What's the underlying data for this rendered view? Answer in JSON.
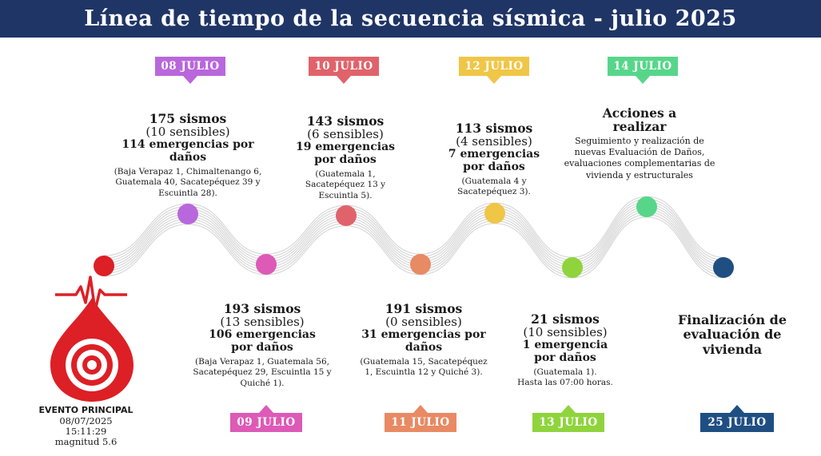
{
  "title": "Línea de tiempo de la secuencia sísmica - julio 2025",
  "colors": {
    "header": "#1f3566",
    "red": "#dd1f26",
    "purple": "#b967dc",
    "pink": "#dd5ab7",
    "rose": "#e0636b",
    "salmon": "#e88a63",
    "yellow": "#f0c647",
    "lime": "#8fd43d",
    "green": "#57d68a",
    "navy": "#1f4f82"
  },
  "main_event": {
    "icon": "seismic-drop-icon",
    "label": "EVENTO PRINCIPAL",
    "date": "08/07/2025",
    "time": "15:11:29",
    "magnitude": "magnitud 5.6"
  },
  "timeline": [
    {
      "date": "08 JULIO",
      "sismos": "175 sismos",
      "sensibles": "(10 sensibles)",
      "emergencias": "114 emergencias por daños",
      "detalle": "(Baja Verapaz 1, Chimaltenango 6, Guatemala 40, Sacatepéquez 39 y Escuintla 28)."
    },
    {
      "date": "09 JULIO",
      "sismos": "193 sismos",
      "sensibles": "(13 sensibles)",
      "emergencias": "106 emergencias por daños",
      "detalle": "(Baja Verapaz 1, Guatemala 56, Sacatepéquez 29, Escuintla 15 y Quiché 1)."
    },
    {
      "date": "10 JULIO",
      "sismos": "143 sismos",
      "sensibles": "(6 sensibles)",
      "emergencias": "19 emergencias por daños",
      "detalle": "(Guatemala 1, Sacatepéquez 13 y Escuintla 5)."
    },
    {
      "date": "11 JULIO",
      "sismos": "191 sismos",
      "sensibles": "(0 sensibles)",
      "emergencias": "31 emergencias por daños",
      "detalle": "(Guatemala 15, Sacatepéquez 1, Escuintla 12 y Quiché 3)."
    },
    {
      "date": "12 JULIO",
      "sismos": "113 sismos",
      "sensibles": "(4 sensibles)",
      "emergencias": "7 emergencias por daños",
      "detalle": "(Guatemala 4 y Sacatepéquez 3)."
    },
    {
      "date": "13 JULIO",
      "sismos": "21 sismos",
      "sensibles": "(10 sensibles)",
      "emergencias": "1 emergencia por daños",
      "detalle": "(Guatemala 1).",
      "extra": "Hasta las 07:00 horas."
    },
    {
      "date": "14 JULIO",
      "heading": "Acciones a realizar",
      "detalle": "Seguimiento y realización de nuevas Evaluación de Daños, evaluaciones complementarias de vivienda y estructurales"
    },
    {
      "date": "25 JULIO",
      "heading": "Finalización de evaluación de vivienda"
    }
  ]
}
